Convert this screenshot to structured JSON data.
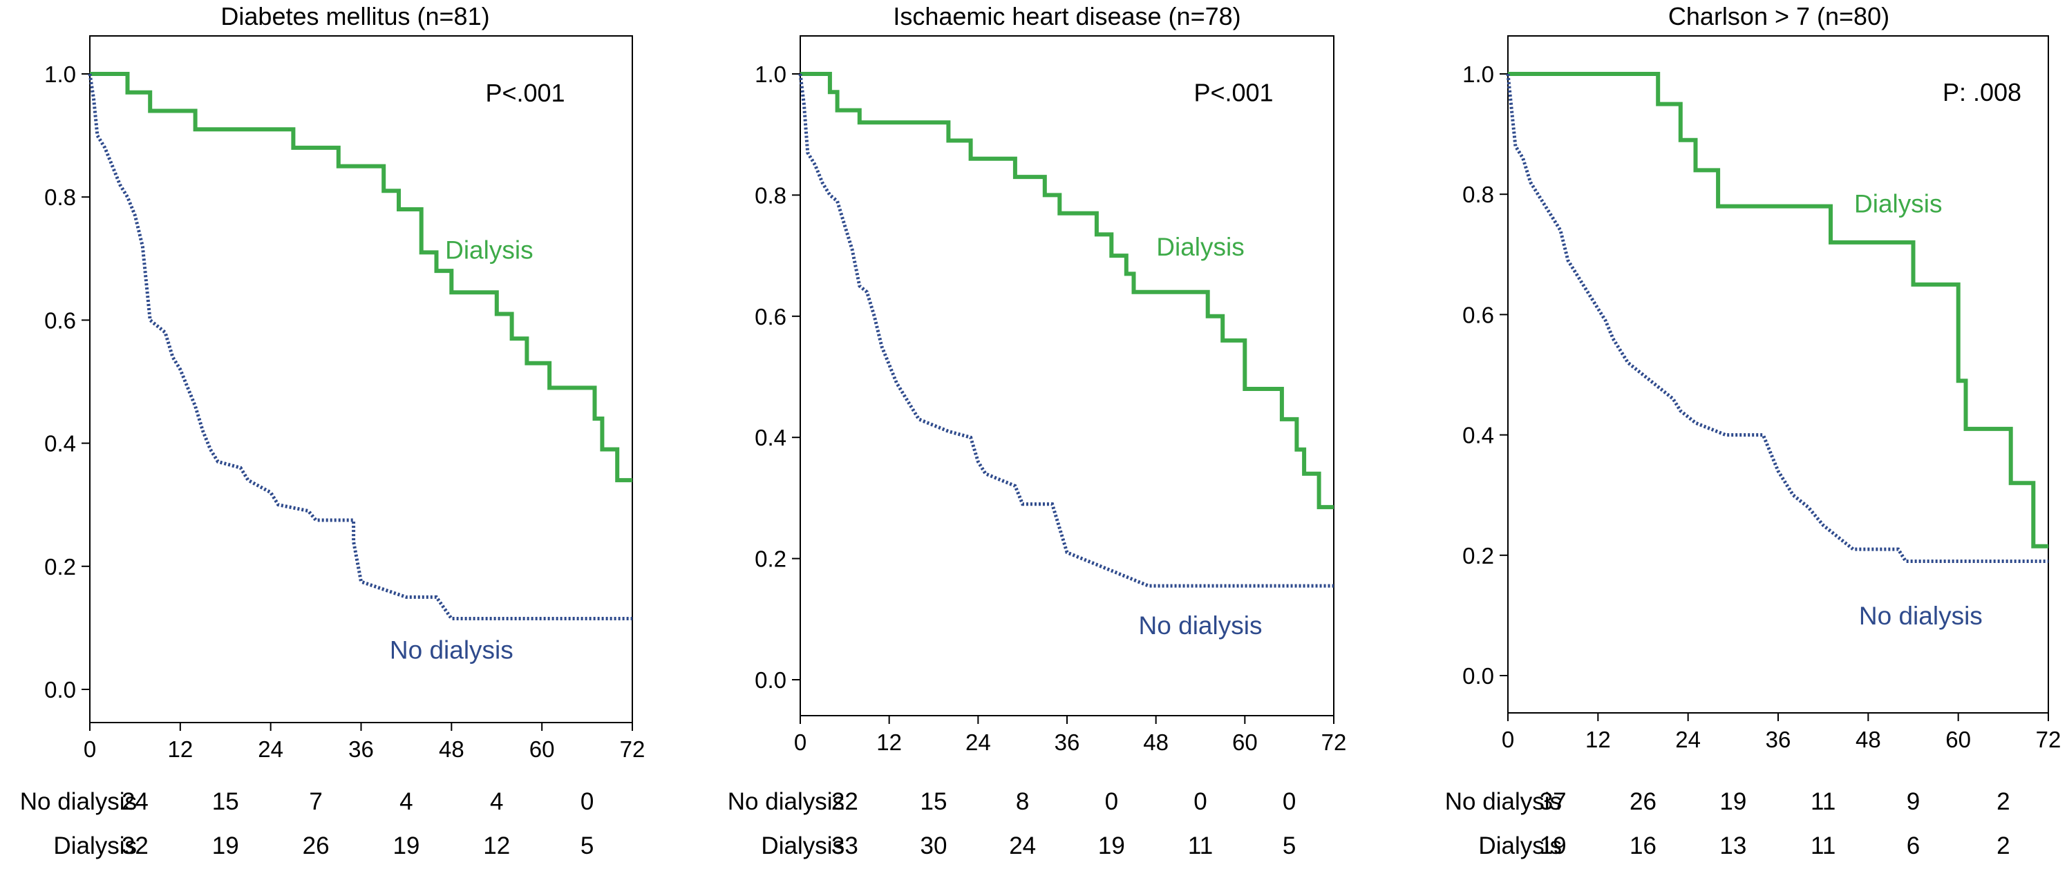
{
  "chart_data": [
    {
      "type": "line",
      "title": "Diabetes mellitus (n=81)",
      "xlabel": "",
      "ylabel": "",
      "xlim": [
        0,
        72
      ],
      "ylim": [
        0,
        1.0
      ],
      "x_ticks": [
        0,
        12,
        24,
        36,
        48,
        60,
        72
      ],
      "y_ticks": [
        "0.0",
        "0.2",
        "0.4",
        "0.6",
        "0.8",
        "1.0"
      ],
      "p_value": "P<.001",
      "series": [
        {
          "name": "Dialysis",
          "label": "Dialysis",
          "color": "#3daa48",
          "style": "solid",
          "label_at": [
            53,
            0.7
          ],
          "points": [
            [
              0,
              1.0
            ],
            [
              5,
              1.0
            ],
            [
              5,
              0.97
            ],
            [
              8,
              0.97
            ],
            [
              8,
              0.94
            ],
            [
              14,
              0.94
            ],
            [
              14,
              0.91
            ],
            [
              27,
              0.91
            ],
            [
              27,
              0.88
            ],
            [
              33,
              0.88
            ],
            [
              33,
              0.85
            ],
            [
              39,
              0.85
            ],
            [
              39,
              0.81
            ],
            [
              41,
              0.81
            ],
            [
              41,
              0.78
            ],
            [
              44,
              0.78
            ],
            [
              44,
              0.71
            ],
            [
              46,
              0.71
            ],
            [
              46,
              0.68
            ],
            [
              48,
              0.68
            ],
            [
              48,
              0.645
            ],
            [
              54,
              0.645
            ],
            [
              54,
              0.61
            ],
            [
              56,
              0.61
            ],
            [
              56,
              0.57
            ],
            [
              58,
              0.57
            ],
            [
              58,
              0.53
            ],
            [
              61,
              0.53
            ],
            [
              61,
              0.49
            ],
            [
              67,
              0.49
            ],
            [
              67,
              0.44
            ],
            [
              68,
              0.44
            ],
            [
              68,
              0.39
            ],
            [
              70,
              0.39
            ],
            [
              70,
              0.34
            ],
            [
              72,
              0.34
            ]
          ]
        },
        {
          "name": "No dialysis",
          "label": "No dialysis",
          "color": "#2e4a8c",
          "style": "dotted",
          "label_at": [
            48,
            0.05
          ],
          "points": [
            [
              0,
              1.0
            ],
            [
              0.5,
              0.96
            ],
            [
              1,
              0.9
            ],
            [
              2,
              0.88
            ],
            [
              3,
              0.85
            ],
            [
              4,
              0.82
            ],
            [
              5,
              0.8
            ],
            [
              6,
              0.77
            ],
            [
              7,
              0.72
            ],
            [
              8,
              0.6
            ],
            [
              10,
              0.58
            ],
            [
              11,
              0.54
            ],
            [
              12,
              0.52
            ],
            [
              13,
              0.49
            ],
            [
              14,
              0.46
            ],
            [
              15,
              0.42
            ],
            [
              16,
              0.39
            ],
            [
              17,
              0.37
            ],
            [
              20,
              0.36
            ],
            [
              21,
              0.34
            ],
            [
              24,
              0.32
            ],
            [
              25,
              0.3
            ],
            [
              29,
              0.29
            ],
            [
              30,
              0.275
            ],
            [
              35,
              0.275
            ],
            [
              35,
              0.24
            ],
            [
              36,
              0.175
            ],
            [
              42,
              0.15
            ],
            [
              46,
              0.15
            ],
            [
              48,
              0.115
            ],
            [
              72,
              0.115
            ]
          ]
        }
      ],
      "risk_table": {
        "rows": [
          {
            "label": "No dialysis",
            "values": [
              "24",
              "15",
              "7",
              "4",
              "4",
              "0"
            ]
          },
          {
            "label": "Dialysis",
            "values": [
              "32",
              "19",
              "26",
              "19",
              "12",
              "5"
            ]
          }
        ]
      }
    },
    {
      "type": "line",
      "title": "Ischaemic heart disease (n=78)",
      "xlabel": "",
      "ylabel": "",
      "xlim": [
        0,
        72
      ],
      "ylim": [
        0,
        1.0
      ],
      "x_ticks": [
        0,
        12,
        24,
        36,
        48,
        60,
        72
      ],
      "y_ticks": [
        "0.0",
        "0.2",
        "0.4",
        "0.6",
        "0.8",
        "1.0"
      ],
      "p_value": "P<.001",
      "series": [
        {
          "name": "Dialysis",
          "label": "Dialysis",
          "color": "#3daa48",
          "style": "solid",
          "label_at": [
            54,
            0.7
          ],
          "points": [
            [
              0,
              1.0
            ],
            [
              4,
              1.0
            ],
            [
              4,
              0.97
            ],
            [
              5,
              0.97
            ],
            [
              5,
              0.94
            ],
            [
              8,
              0.94
            ],
            [
              8,
              0.92
            ],
            [
              20,
              0.92
            ],
            [
              20,
              0.89
            ],
            [
              23,
              0.89
            ],
            [
              23,
              0.86
            ],
            [
              29,
              0.86
            ],
            [
              29,
              0.83
            ],
            [
              33,
              0.83
            ],
            [
              33,
              0.8
            ],
            [
              35,
              0.8
            ],
            [
              35,
              0.77
            ],
            [
              40,
              0.77
            ],
            [
              40,
              0.735
            ],
            [
              42,
              0.735
            ],
            [
              42,
              0.7
            ],
            [
              44,
              0.7
            ],
            [
              44,
              0.67
            ],
            [
              45,
              0.67
            ],
            [
              45,
              0.64
            ],
            [
              55,
              0.64
            ],
            [
              55,
              0.6
            ],
            [
              57,
              0.6
            ],
            [
              57,
              0.56
            ],
            [
              60,
              0.56
            ],
            [
              60,
              0.48
            ],
            [
              65,
              0.48
            ],
            [
              65,
              0.43
            ],
            [
              67,
              0.43
            ],
            [
              67,
              0.38
            ],
            [
              68,
              0.38
            ],
            [
              68,
              0.34
            ],
            [
              70,
              0.34
            ],
            [
              70,
              0.285
            ],
            [
              72,
              0.285
            ]
          ]
        },
        {
          "name": "No dialysis",
          "label": "No dialysis",
          "color": "#2e4a8c",
          "style": "dotted",
          "label_at": [
            54,
            0.075
          ],
          "points": [
            [
              0,
              1.0
            ],
            [
              0.5,
              0.95
            ],
            [
              1,
              0.87
            ],
            [
              2,
              0.85
            ],
            [
              3,
              0.82
            ],
            [
              4,
              0.8
            ],
            [
              5,
              0.79
            ],
            [
              6,
              0.75
            ],
            [
              7,
              0.71
            ],
            [
              8,
              0.65
            ],
            [
              9,
              0.64
            ],
            [
              10,
              0.6
            ],
            [
              11,
              0.55
            ],
            [
              12,
              0.52
            ],
            [
              13,
              0.49
            ],
            [
              14,
              0.47
            ],
            [
              15,
              0.45
            ],
            [
              16,
              0.43
            ],
            [
              20,
              0.41
            ],
            [
              23,
              0.4
            ],
            [
              24,
              0.36
            ],
            [
              25,
              0.34
            ],
            [
              29,
              0.32
            ],
            [
              30,
              0.29
            ],
            [
              34,
              0.29
            ],
            [
              35,
              0.25
            ],
            [
              36,
              0.21
            ],
            [
              42,
              0.18
            ],
            [
              47,
              0.155
            ],
            [
              72,
              0.155
            ]
          ]
        }
      ],
      "risk_table": {
        "rows": [
          {
            "label": "No dialysis",
            "values": [
              "22",
              "15",
              "8",
              "0",
              "0",
              "0"
            ]
          },
          {
            "label": "Dialysis",
            "values": [
              "33",
              "30",
              "24",
              "19",
              "11",
              "5"
            ]
          }
        ]
      }
    },
    {
      "type": "line",
      "title": "Charlson > 7 (n=80)",
      "xlabel": "",
      "ylabel": "",
      "xlim": [
        0,
        72
      ],
      "ylim": [
        0,
        1.0
      ],
      "x_ticks": [
        0,
        12,
        24,
        36,
        48,
        60,
        72
      ],
      "y_ticks": [
        "0.0",
        "0.2",
        "0.4",
        "0.6",
        "0.8",
        "1.0"
      ],
      "p_value": "P: .008",
      "series": [
        {
          "name": "Dialysis",
          "label": "Dialysis",
          "color": "#3daa48",
          "style": "solid",
          "label_at": [
            52,
            0.77
          ],
          "points": [
            [
              0,
              1.0
            ],
            [
              20,
              1.0
            ],
            [
              20,
              0.95
            ],
            [
              23,
              0.95
            ],
            [
              23,
              0.89
            ],
            [
              25,
              0.89
            ],
            [
              25,
              0.84
            ],
            [
              28,
              0.84
            ],
            [
              28,
              0.78
            ],
            [
              43,
              0.78
            ],
            [
              43,
              0.72
            ],
            [
              54,
              0.72
            ],
            [
              54,
              0.65
            ],
            [
              60,
              0.65
            ],
            [
              60,
              0.49
            ],
            [
              61,
              0.49
            ],
            [
              61,
              0.41
            ],
            [
              67,
              0.41
            ],
            [
              67,
              0.32
            ],
            [
              70,
              0.32
            ],
            [
              70,
              0.215
            ],
            [
              72,
              0.215
            ]
          ]
        },
        {
          "name": "No dialysis",
          "label": "No dialysis",
          "color": "#2e4a8c",
          "style": "dotted",
          "label_at": [
            55,
            0.085
          ],
          "points": [
            [
              0,
              1.0
            ],
            [
              0.5,
              0.94
            ],
            [
              1,
              0.88
            ],
            [
              2,
              0.86
            ],
            [
              3,
              0.82
            ],
            [
              4,
              0.8
            ],
            [
              6,
              0.76
            ],
            [
              7,
              0.74
            ],
            [
              8,
              0.69
            ],
            [
              9,
              0.67
            ],
            [
              10,
              0.65
            ],
            [
              11,
              0.63
            ],
            [
              12,
              0.61
            ],
            [
              13,
              0.59
            ],
            [
              14,
              0.56
            ],
            [
              15,
              0.54
            ],
            [
              16,
              0.52
            ],
            [
              18,
              0.5
            ],
            [
              20,
              0.48
            ],
            [
              22,
              0.46
            ],
            [
              23,
              0.44
            ],
            [
              25,
              0.42
            ],
            [
              27,
              0.41
            ],
            [
              29,
              0.4
            ],
            [
              34,
              0.4
            ],
            [
              35,
              0.37
            ],
            [
              36,
              0.34
            ],
            [
              38,
              0.3
            ],
            [
              40,
              0.28
            ],
            [
              42,
              0.25
            ],
            [
              44,
              0.23
            ],
            [
              46,
              0.21
            ],
            [
              52,
              0.21
            ],
            [
              53,
              0.19
            ],
            [
              72,
              0.19
            ]
          ]
        }
      ],
      "risk_table": {
        "rows": [
          {
            "label": "No dialysis",
            "values": [
              "37",
              "26",
              "19",
              "11",
              "9",
              "2"
            ]
          },
          {
            "label": "Dialysis",
            "values": [
              "19",
              "16",
              "13",
              "11",
              "6",
              "2"
            ]
          }
        ]
      }
    }
  ]
}
